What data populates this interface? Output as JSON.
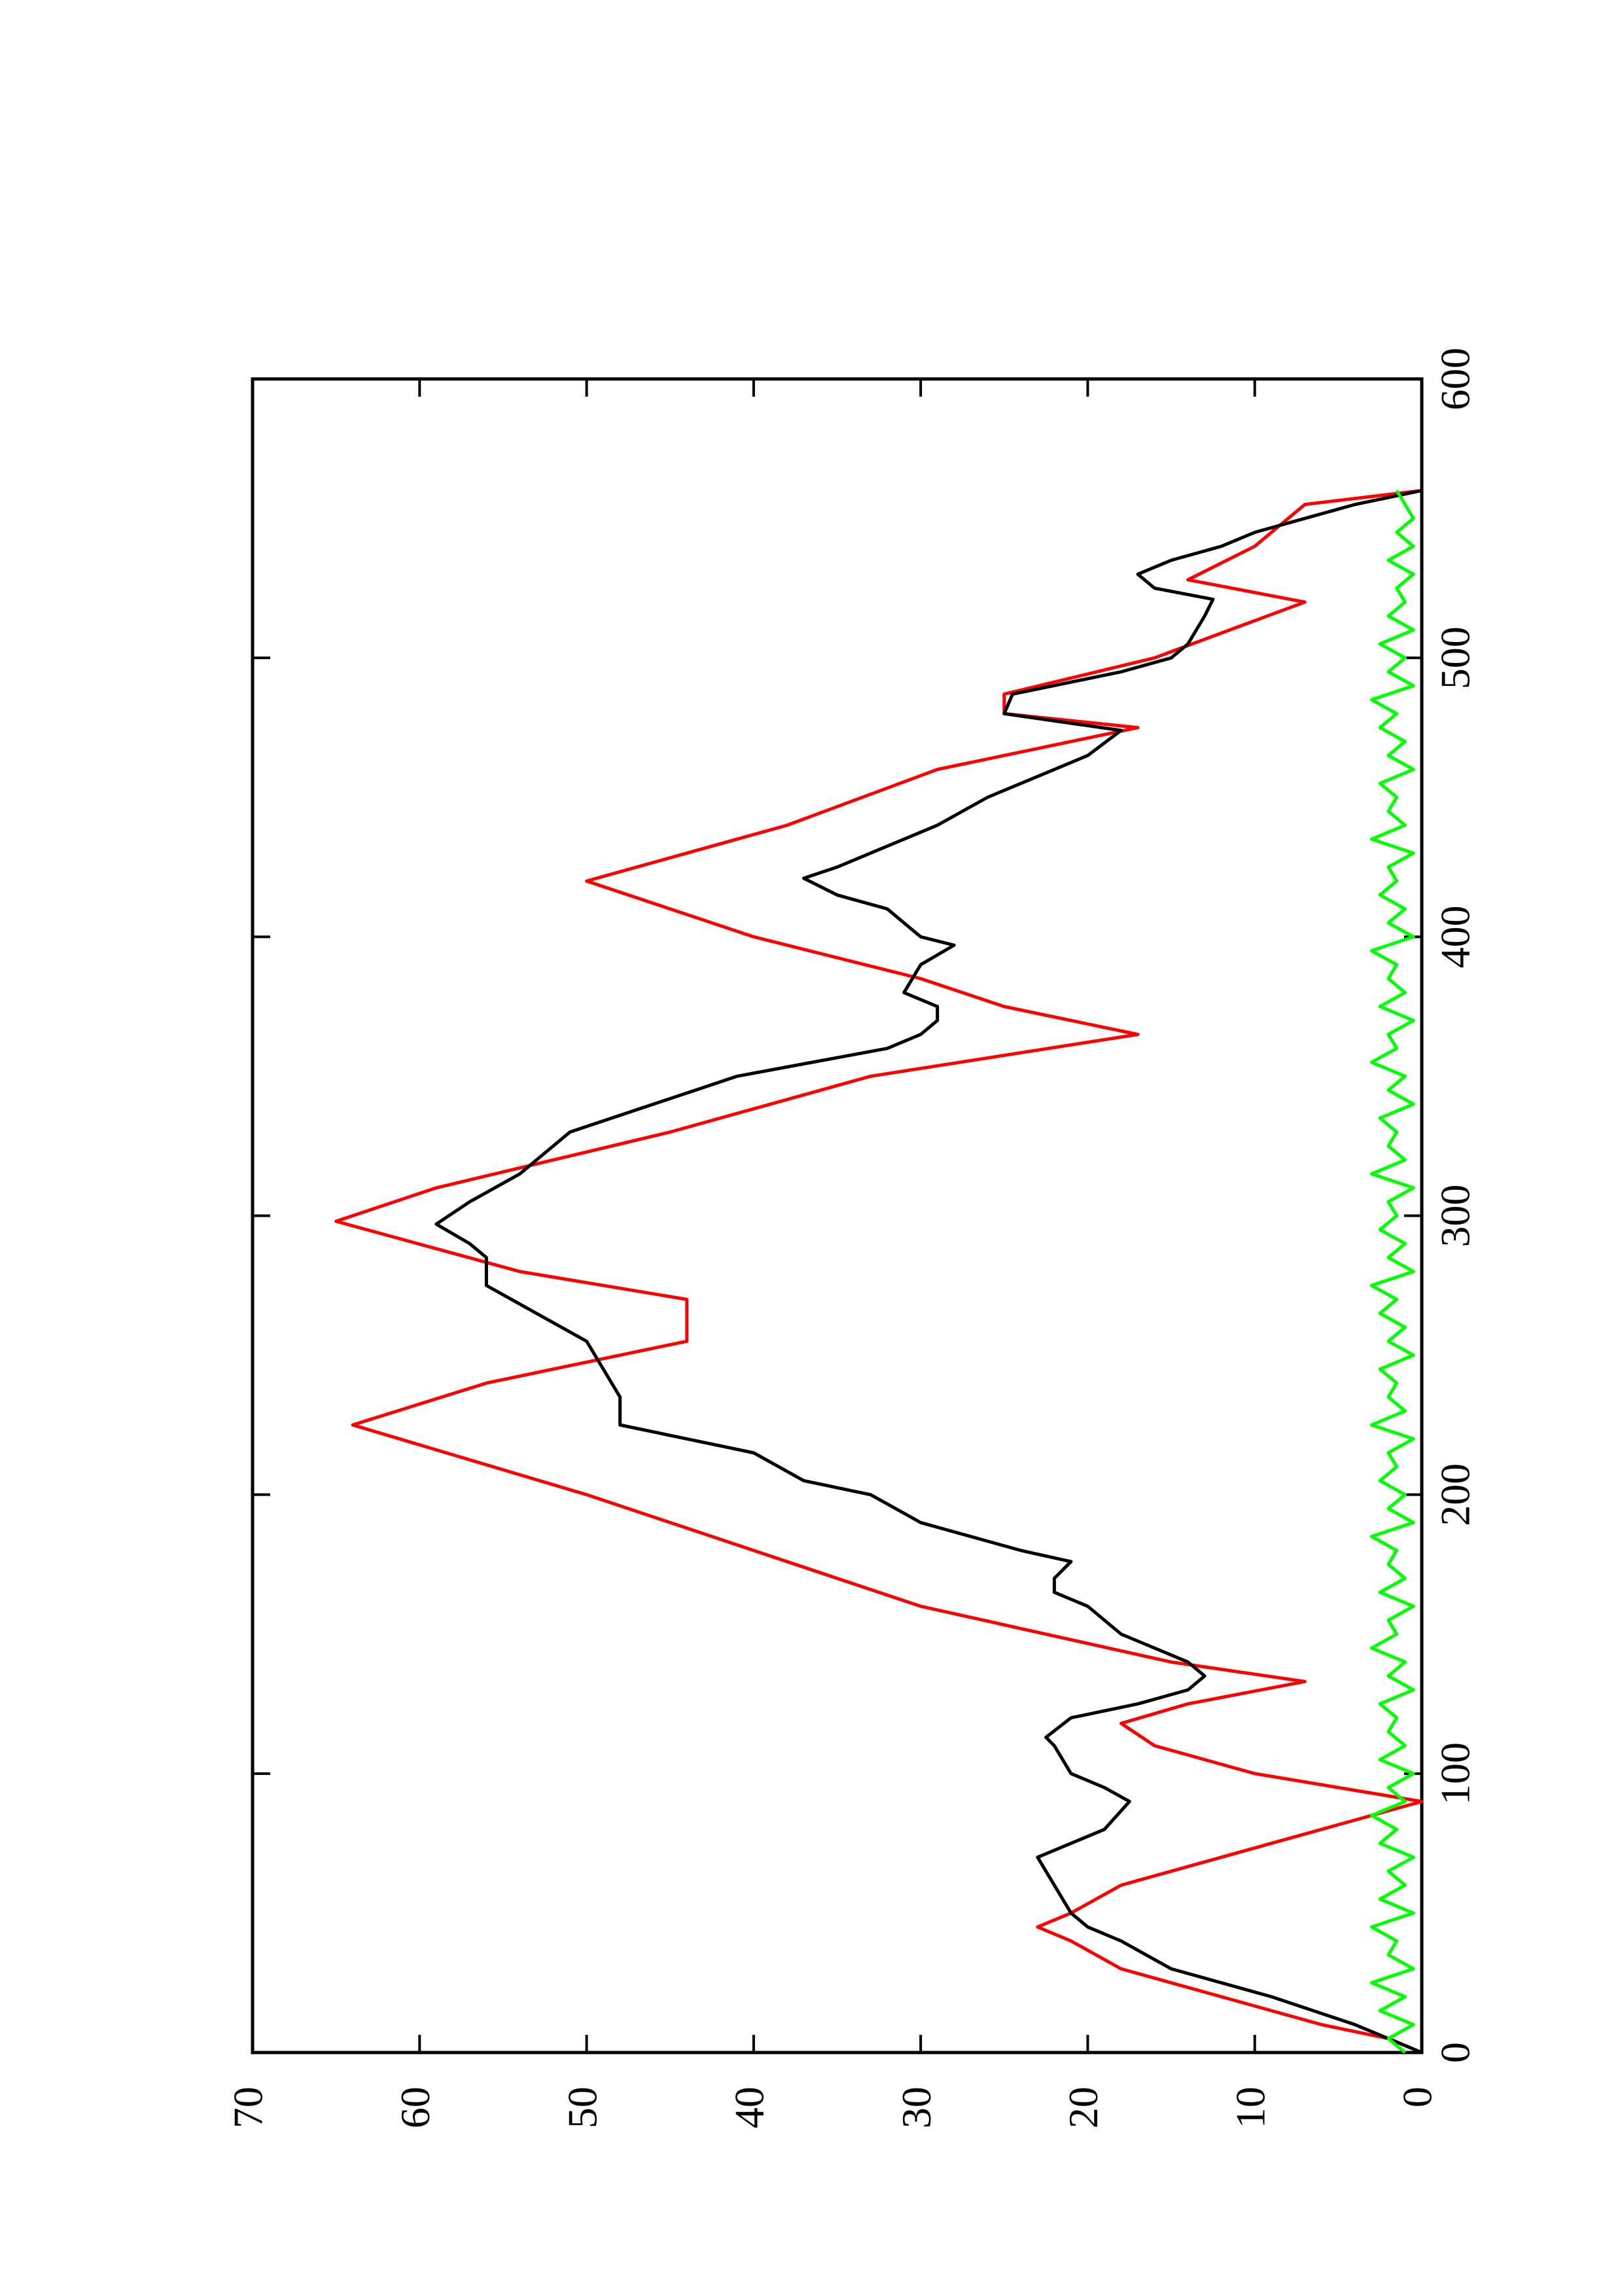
{
  "chart_data": {
    "type": "line",
    "xlim": [
      0,
      600
    ],
    "xticks": [
      0,
      100,
      200,
      300,
      400,
      500,
      600
    ],
    "ylim": [
      0,
      70
    ],
    "yticks": [
      0,
      10,
      20,
      30,
      40,
      50,
      60,
      70
    ],
    "series": [
      {
        "color": "#ff0000",
        "x": [
          0,
          5,
          10,
          20,
          30,
          40,
          45,
          50,
          60,
          70,
          80,
          90,
          100,
          110,
          118,
          125,
          133,
          140,
          160,
          180,
          200,
          225,
          240,
          255,
          270,
          280,
          298,
          310,
          330,
          350,
          365,
          375,
          385,
          400,
          420,
          440,
          460,
          475,
          480,
          487,
          500,
          520,
          528,
          540,
          555,
          560
        ],
        "values": [
          0,
          2,
          6,
          12,
          18,
          21,
          23,
          21,
          18,
          12,
          6,
          0,
          10,
          16,
          18,
          14,
          7,
          15,
          30,
          40,
          50,
          64,
          56,
          44,
          44,
          54,
          65,
          59,
          45,
          33,
          17,
          25,
          30,
          40,
          50,
          38,
          29,
          17,
          25,
          25,
          16,
          7,
          14,
          10,
          7,
          0
        ]
      },
      {
        "color": "#000000",
        "x": [
          0,
          5,
          10,
          20,
          30,
          40,
          45,
          50,
          60,
          70,
          80,
          90,
          95,
          100,
          110,
          113,
          120,
          125,
          130,
          135,
          140,
          150,
          160,
          165,
          170,
          176,
          180,
          190,
          200,
          205,
          215,
          220,
          225,
          235,
          245,
          255,
          265,
          275,
          285,
          290,
          297,
          305,
          315,
          320,
          330,
          340,
          346,
          350,
          360,
          365,
          370,
          375,
          380,
          390,
          397,
          400,
          410,
          415,
          421,
          425,
          430,
          440,
          450,
          460,
          465,
          474,
          480,
          487,
          495,
          500,
          505,
          515,
          521,
          525,
          530,
          535,
          540,
          545,
          550,
          555,
          560
        ],
        "values": [
          0,
          2,
          4,
          9,
          15,
          18,
          20,
          21,
          22,
          23,
          19,
          17.5,
          19,
          21,
          22,
          22.5,
          21,
          17,
          14,
          13,
          14,
          18,
          20,
          22,
          22,
          21,
          24,
          30,
          33,
          37,
          40,
          44,
          48,
          48,
          49,
          50,
          53,
          56,
          56,
          57,
          59,
          57,
          54,
          53,
          51,
          46,
          43,
          41,
          32,
          30,
          29,
          29,
          31,
          30,
          28,
          30,
          32,
          35,
          37,
          35,
          33,
          29,
          26,
          22,
          20,
          18,
          25,
          24.5,
          18,
          15,
          14,
          13,
          12.5,
          16,
          17,
          15,
          12,
          10,
          7,
          4,
          0
        ]
      },
      {
        "color": "#00ff00",
        "x": [
          0,
          5,
          10,
          15,
          20,
          25,
          30,
          35,
          40,
          45,
          50,
          55,
          60,
          65,
          70,
          75,
          80,
          85,
          90,
          95,
          100,
          105,
          110,
          115,
          120,
          125,
          130,
          135,
          140,
          145,
          150,
          155,
          160,
          165,
          170,
          175,
          180,
          185,
          190,
          195,
          200,
          205,
          210,
          215,
          220,
          225,
          230,
          235,
          240,
          245,
          250,
          255,
          260,
          265,
          270,
          275,
          280,
          285,
          290,
          295,
          300,
          305,
          310,
          315,
          320,
          325,
          330,
          335,
          340,
          345,
          350,
          355,
          360,
          365,
          370,
          375,
          380,
          385,
          390,
          395,
          400,
          405,
          410,
          415,
          420,
          425,
          430,
          435,
          440,
          445,
          450,
          455,
          460,
          465,
          470,
          475,
          480,
          485,
          490,
          495,
          500,
          505,
          510,
          515,
          520,
          525,
          530,
          535,
          540,
          545,
          550,
          555,
          560
        ],
        "values": [
          1,
          2,
          0.5,
          2.5,
          1,
          3,
          0.5,
          2,
          1.5,
          3,
          0.5,
          2.5,
          1,
          2,
          0.5,
          2.5,
          1.5,
          3,
          1,
          2,
          0.5,
          2.5,
          1,
          2,
          1.5,
          2.5,
          0.5,
          2,
          1,
          3,
          1.5,
          2,
          0.5,
          2.5,
          1,
          2,
          1.5,
          3,
          0.5,
          2,
          1,
          2.5,
          1.5,
          2,
          0.5,
          3,
          1,
          2,
          1.5,
          2.5,
          0.5,
          2,
          1,
          2.5,
          1.5,
          3,
          0.5,
          2,
          1,
          2.5,
          1.5,
          2,
          0.5,
          3,
          1,
          2,
          1.5,
          2.5,
          0.5,
          2,
          1,
          3,
          1.5,
          2,
          0.5,
          2.5,
          1,
          2,
          1.5,
          3,
          0.5,
          2,
          1,
          2.5,
          1.5,
          2,
          0.5,
          3,
          1,
          2,
          1.5,
          2.5,
          0.5,
          2,
          1,
          2.5,
          1.5,
          3,
          0.5,
          2,
          1,
          2.5,
          0.5,
          2,
          1,
          1.5,
          0.5,
          2,
          0.5,
          1.5,
          0.5,
          1,
          1.5
        ]
      }
    ]
  }
}
